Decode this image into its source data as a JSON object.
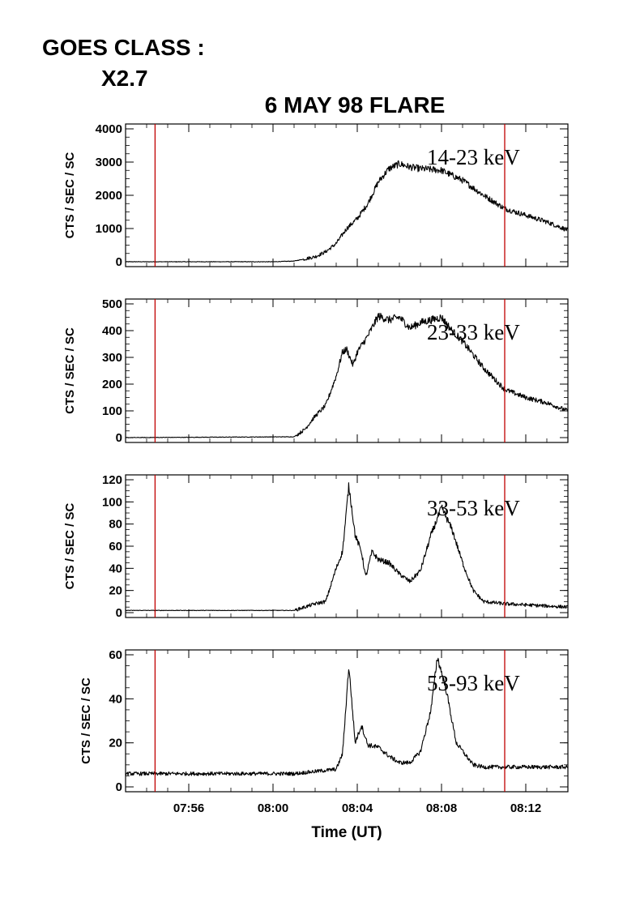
{
  "header": {
    "goes_label": "GOES CLASS :",
    "goes_value": "X2.7",
    "title": "6 MAY 98 FLARE"
  },
  "chart_data": {
    "type": "line",
    "title": "6 MAY 98 FLARE",
    "xlabel": "Time (UT)",
    "x_unit": "minutes of day (UT)",
    "xlim": [
      "07:53",
      "08:14"
    ],
    "x_ticks": [
      "07:56",
      "08:00",
      "08:04",
      "08:08",
      "08:12"
    ],
    "markers": {
      "color": "#c00000",
      "times": [
        "07:54.4",
        "08:11.0"
      ]
    },
    "panels": [
      {
        "name": "14-23 keV",
        "ylabel": "CTS / SEC / SC",
        "ylim": [
          0,
          4000
        ],
        "y_ticks": [
          0,
          1000,
          2000,
          3000,
          4000
        ],
        "profile": [
          [
            "07:53",
            0
          ],
          [
            "08:00",
            0
          ],
          [
            "08:01",
            20
          ],
          [
            "08:02",
            150
          ],
          [
            "08:02.5",
            300
          ],
          [
            "08:03",
            550
          ],
          [
            "08:03.5",
            1000
          ],
          [
            "08:04",
            1300
          ],
          [
            "08:04.5",
            1750
          ],
          [
            "08:05",
            2400
          ],
          [
            "08:05.5",
            2800
          ],
          [
            "08:06",
            2950
          ],
          [
            "08:06.5",
            2850
          ],
          [
            "08:07",
            2800
          ],
          [
            "08:07.5",
            2780
          ],
          [
            "08:08",
            2750
          ],
          [
            "08:08.5",
            2600
          ],
          [
            "08:09",
            2450
          ],
          [
            "08:10",
            2000
          ],
          [
            "08:11",
            1600
          ],
          [
            "08:12",
            1400
          ],
          [
            "08:13",
            1200
          ],
          [
            "08:14",
            950
          ]
        ]
      },
      {
        "name": "23-33 keV",
        "ylabel": "CTS / SEC / SC",
        "ylim": [
          0,
          500
        ],
        "y_ticks": [
          0,
          100,
          200,
          300,
          400,
          500
        ],
        "profile": [
          [
            "07:53",
            0
          ],
          [
            "08:01",
            3
          ],
          [
            "08:01.5",
            30
          ],
          [
            "08:02",
            80
          ],
          [
            "08:02.5",
            120
          ],
          [
            "08:03",
            230
          ],
          [
            "08:03.3",
            320
          ],
          [
            "08:03.5",
            330
          ],
          [
            "08:03.8",
            270
          ],
          [
            "08:04",
            320
          ],
          [
            "08:04.5",
            380
          ],
          [
            "08:05",
            455
          ],
          [
            "08:05.5",
            440
          ],
          [
            "08:06",
            450
          ],
          [
            "08:06.5",
            410
          ],
          [
            "08:07",
            430
          ],
          [
            "08:07.5",
            440
          ],
          [
            "08:08",
            450
          ],
          [
            "08:08.5",
            400
          ],
          [
            "08:09",
            360
          ],
          [
            "08:10",
            260
          ],
          [
            "08:11",
            180
          ],
          [
            "08:12",
            150
          ],
          [
            "08:13",
            130
          ],
          [
            "08:14",
            100
          ]
        ]
      },
      {
        "name": "33-53 keV",
        "ylabel": "CTS / SEC / SC",
        "ylim": [
          0,
          120
        ],
        "y_ticks": [
          0,
          20,
          40,
          60,
          80,
          100,
          120
        ],
        "profile": [
          [
            "07:53",
            2
          ],
          [
            "08:01",
            2
          ],
          [
            "08:01.5",
            5
          ],
          [
            "08:02",
            8
          ],
          [
            "08:02.5",
            10
          ],
          [
            "08:03",
            40
          ],
          [
            "08:03.3",
            55
          ],
          [
            "08:03.6",
            115
          ],
          [
            "08:03.9",
            70
          ],
          [
            "08:04.2",
            55
          ],
          [
            "08:04.4",
            32
          ],
          [
            "08:04.7",
            55
          ],
          [
            "08:05",
            48
          ],
          [
            "08:05.5",
            45
          ],
          [
            "08:06",
            35
          ],
          [
            "08:06.5",
            28
          ],
          [
            "08:07",
            38
          ],
          [
            "08:07.5",
            70
          ],
          [
            "08:08",
            95
          ],
          [
            "08:08.5",
            75
          ],
          [
            "08:09",
            45
          ],
          [
            "08:09.5",
            20
          ],
          [
            "08:10",
            10
          ],
          [
            "08:11",
            8
          ],
          [
            "08:12",
            7
          ],
          [
            "08:13",
            6
          ],
          [
            "08:14",
            5
          ]
        ]
      },
      {
        "name": "53-93 keV",
        "ylabel": "CTS / SEC / SC",
        "ylim": [
          0,
          60
        ],
        "y_ticks": [
          0,
          20,
          40,
          60
        ],
        "profile": [
          [
            "07:53",
            6
          ],
          [
            "08:01",
            6
          ],
          [
            "08:02",
            7
          ],
          [
            "08:03",
            8
          ],
          [
            "08:03.3",
            15
          ],
          [
            "08:03.6",
            55
          ],
          [
            "08:03.9",
            20
          ],
          [
            "08:04.2",
            28
          ],
          [
            "08:04.5",
            19
          ],
          [
            "08:05",
            18
          ],
          [
            "08:05.5",
            14
          ],
          [
            "08:06",
            11
          ],
          [
            "08:06.5",
            11
          ],
          [
            "08:07",
            16
          ],
          [
            "08:07.5",
            35
          ],
          [
            "08:07.8",
            59
          ],
          [
            "08:08.2",
            45
          ],
          [
            "08:08.7",
            20
          ],
          [
            "08:09.5",
            10
          ],
          [
            "08:10",
            9
          ],
          [
            "08:11",
            9
          ],
          [
            "08:12",
            9
          ],
          [
            "08:13",
            9
          ],
          [
            "08:14",
            9
          ]
        ]
      }
    ]
  }
}
